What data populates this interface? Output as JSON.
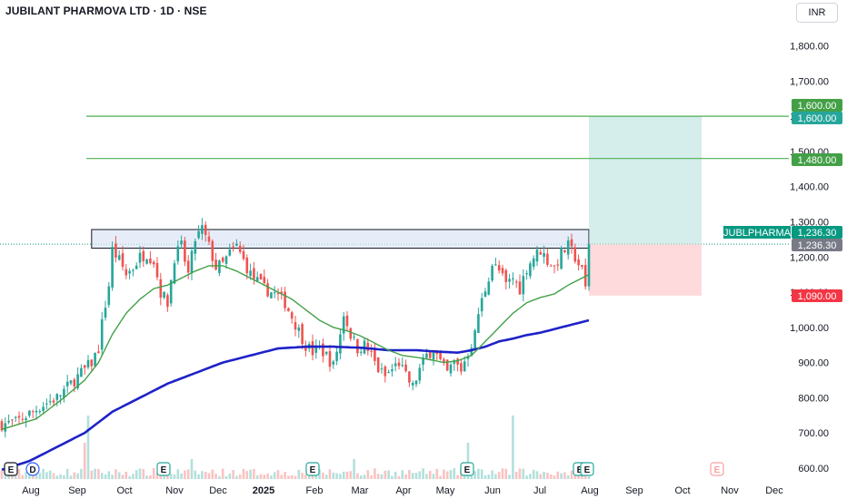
{
  "header": {
    "title": "JUBILANT PHARMOVA LTD · 1D · NSE",
    "currency": "INR"
  },
  "colors": {
    "up": "#26a69a",
    "down": "#ef5350",
    "ma_fast": "#43a047",
    "ma_slow": "#1e22c8",
    "level_line": "#4caf50",
    "target_zone": "#b2dfdb",
    "stop_zone": "#ffcdd2",
    "resistance_zone": "#dbe6f7"
  },
  "chart_data": {
    "type": "candlestick",
    "symbol": "JUBLPHARMA",
    "timeframe": "1D",
    "x_ticks": [
      "Aug",
      "Sep",
      "Oct",
      "Nov",
      "Dec",
      "2025",
      "Feb",
      "Mar",
      "Apr",
      "May",
      "Jun",
      "Jul",
      "Aug",
      "Sep",
      "Oct",
      "Nov",
      "Dec"
    ],
    "y_ticks": [
      "600.00",
      "700.00",
      "800.00",
      "900.00",
      "1,000.00",
      "1,100.00",
      "1,200.00",
      "1,300.00",
      "1,400.00",
      "1,500.00",
      "1,600.00",
      "1,700.00",
      "1,800.00"
    ],
    "ylim": [
      580,
      1860
    ],
    "last_price": 1236.3,
    "price_labels": [
      {
        "text": "1,600.00",
        "value": 1600,
        "color": "#43a047"
      },
      {
        "text": "1,600.00",
        "value": 1600,
        "color": "#26a69a"
      },
      {
        "text": "1,480.00",
        "value": 1480,
        "color": "#43a047"
      },
      {
        "text": "1,236.30",
        "value": 1236.3,
        "color": "#089981"
      },
      {
        "text": "1,236.30",
        "value": 1236.3,
        "color": "#787b86"
      },
      {
        "text": "1,090.00",
        "value": 1090,
        "color": "#f23645"
      }
    ],
    "symbol_tag": "JUBLPHARMA",
    "horizontal_levels": [
      1600,
      1480
    ],
    "resistance_zone": {
      "from": 1225,
      "to": 1278
    },
    "target_zone": {
      "from": 1236.3,
      "to": 1600
    },
    "stop_zone": {
      "from": 1090,
      "to": 1236.3
    },
    "close_path": [
      [
        0,
        725
      ],
      [
        4,
        730
      ],
      [
        8,
        755
      ],
      [
        12,
        780
      ],
      [
        16,
        800
      ],
      [
        20,
        840
      ],
      [
        24,
        880
      ],
      [
        26,
        900
      ],
      [
        28,
        940
      ],
      [
        29,
        1010
      ],
      [
        31,
        1120
      ],
      [
        32,
        1220
      ],
      [
        34,
        1190
      ],
      [
        36,
        1150
      ],
      [
        38,
        1170
      ],
      [
        40,
        1200
      ],
      [
        42,
        1210
      ],
      [
        44,
        1190
      ],
      [
        46,
        1100
      ],
      [
        48,
        1070
      ],
      [
        50,
        1200
      ],
      [
        52,
        1230
      ],
      [
        54,
        1150
      ],
      [
        56,
        1250
      ],
      [
        58,
        1280
      ],
      [
        60,
        1230
      ],
      [
        62,
        1170
      ],
      [
        64,
        1180
      ],
      [
        66,
        1210
      ],
      [
        68,
        1230
      ],
      [
        70,
        1190
      ],
      [
        72,
        1150
      ],
      [
        74,
        1130
      ],
      [
        76,
        1110
      ],
      [
        78,
        1100
      ],
      [
        80,
        1090
      ],
      [
        82,
        1070
      ],
      [
        84,
        1030
      ],
      [
        86,
        990
      ],
      [
        88,
        950
      ],
      [
        90,
        930
      ],
      [
        92,
        940
      ],
      [
        94,
        920
      ],
      [
        96,
        890
      ],
      [
        98,
        980
      ],
      [
        99,
        1040
      ],
      [
        101,
        980
      ],
      [
        103,
        940
      ],
      [
        105,
        950
      ],
      [
        107,
        920
      ],
      [
        109,
        880
      ],
      [
        111,
        860
      ],
      [
        113,
        880
      ],
      [
        115,
        900
      ],
      [
        117,
        860
      ],
      [
        119,
        830
      ],
      [
        121,
        880
      ],
      [
        123,
        920
      ],
      [
        125,
        940
      ],
      [
        127,
        900
      ],
      [
        129,
        870
      ],
      [
        131,
        900
      ],
      [
        133,
        880
      ],
      [
        135,
        930
      ],
      [
        137,
        980
      ],
      [
        138,
        1040
      ],
      [
        140,
        1110
      ],
      [
        142,
        1180
      ],
      [
        144,
        1160
      ],
      [
        146,
        1120
      ],
      [
        148,
        1140
      ],
      [
        150,
        1110
      ],
      [
        152,
        1170
      ],
      [
        154,
        1200
      ],
      [
        156,
        1220
      ],
      [
        158,
        1190
      ],
      [
        160,
        1170
      ],
      [
        162,
        1210
      ],
      [
        164,
        1230
      ],
      [
        166,
        1200
      ],
      [
        168,
        1160
      ],
      [
        169,
        1110
      ],
      [
        170,
        1236
      ]
    ],
    "ma_fast_path": [
      [
        0,
        710
      ],
      [
        10,
        740
      ],
      [
        18,
        800
      ],
      [
        24,
        850
      ],
      [
        28,
        900
      ],
      [
        32,
        980
      ],
      [
        36,
        1040
      ],
      [
        40,
        1080
      ],
      [
        44,
        1110
      ],
      [
        48,
        1120
      ],
      [
        52,
        1140
      ],
      [
        56,
        1160
      ],
      [
        60,
        1175
      ],
      [
        64,
        1175
      ],
      [
        68,
        1160
      ],
      [
        72,
        1140
      ],
      [
        76,
        1120
      ],
      [
        80,
        1100
      ],
      [
        84,
        1080
      ],
      [
        88,
        1050
      ],
      [
        92,
        1020
      ],
      [
        96,
        1000
      ],
      [
        100,
        990
      ],
      [
        104,
        975
      ],
      [
        108,
        955
      ],
      [
        112,
        935
      ],
      [
        116,
        920
      ],
      [
        120,
        915
      ],
      [
        124,
        908
      ],
      [
        128,
        900
      ],
      [
        132,
        905
      ],
      [
        136,
        920
      ],
      [
        140,
        960
      ],
      [
        144,
        1000
      ],
      [
        148,
        1040
      ],
      [
        152,
        1070
      ],
      [
        156,
        1085
      ],
      [
        160,
        1095
      ],
      [
        164,
        1120
      ],
      [
        168,
        1140
      ],
      [
        170,
        1150
      ]
    ],
    "ma_slow_path": [
      [
        0,
        595
      ],
      [
        8,
        620
      ],
      [
        16,
        660
      ],
      [
        24,
        700
      ],
      [
        32,
        760
      ],
      [
        40,
        800
      ],
      [
        48,
        840
      ],
      [
        56,
        870
      ],
      [
        64,
        900
      ],
      [
        72,
        920
      ],
      [
        80,
        940
      ],
      [
        88,
        945
      ],
      [
        96,
        945
      ],
      [
        104,
        942
      ],
      [
        112,
        935
      ],
      [
        120,
        935
      ],
      [
        128,
        930
      ],
      [
        132,
        928
      ],
      [
        136,
        935
      ],
      [
        140,
        945
      ],
      [
        144,
        960
      ],
      [
        148,
        968
      ],
      [
        152,
        978
      ],
      [
        156,
        985
      ],
      [
        160,
        995
      ],
      [
        164,
        1005
      ],
      [
        168,
        1015
      ],
      [
        170,
        1020
      ]
    ],
    "event_markers": [
      {
        "text": "E",
        "position": 1,
        "style": "hollow"
      },
      {
        "text": "D",
        "position": 9,
        "style": "blue"
      },
      {
        "text": "E",
        "position": 47,
        "style": "green"
      },
      {
        "text": "E",
        "position": 89,
        "style": "green"
      },
      {
        "text": "E",
        "position": 135,
        "style": "green"
      },
      {
        "text": "E",
        "position": 168,
        "style": "green"
      },
      {
        "text": "E",
        "position": 170,
        "style": "green"
      },
      {
        "text": "E",
        "position": 208,
        "style": "red"
      }
    ]
  }
}
